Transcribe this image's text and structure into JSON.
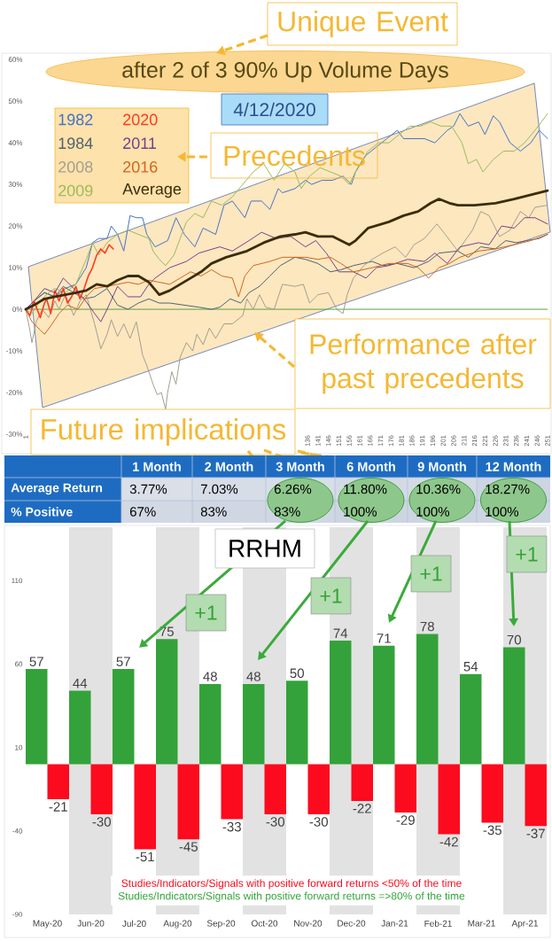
{
  "chart_data": [
    {
      "type": "line",
      "title": "after 2 of 3 90% Up Volume Days",
      "subtitle": "4/12/2020",
      "xlim": [
        1,
        251
      ],
      "ylim": [
        -30,
        60
      ],
      "xticks": [
        1,
        136,
        141,
        146,
        151,
        156,
        161,
        166,
        171,
        176,
        181,
        186,
        191,
        196,
        201,
        206,
        211,
        216,
        221,
        226,
        231,
        236,
        241,
        246,
        251
      ],
      "yticks": [
        {
          "value": -30,
          "label": "-30%"
        },
        {
          "value": -20,
          "label": "-20%"
        },
        {
          "value": -10,
          "label": "-10%"
        },
        {
          "value": 0,
          "label": "0%"
        },
        {
          "value": 10,
          "label": "10%"
        },
        {
          "value": 20,
          "label": "20%"
        },
        {
          "value": 30,
          "label": "30%"
        },
        {
          "value": 40,
          "label": "40%"
        },
        {
          "value": 50,
          "label": "50%"
        },
        {
          "value": 60,
          "label": "60%"
        }
      ],
      "legend": "top left",
      "ref_lines": [
        {
          "axis": "y",
          "value": 0,
          "color": "#5ba33b"
        }
      ],
      "annotations": [
        "Unique Event",
        "Precedents",
        "Performance after past precedents",
        "Future implications"
      ],
      "series": [
        {
          "name": "1982",
          "color": "#4472c4",
          "x": [
            1,
            5,
            10,
            15,
            20,
            25,
            30,
            33,
            36,
            40,
            42,
            45,
            48,
            51,
            54,
            57,
            59,
            63,
            69,
            73,
            77,
            82,
            86,
            92,
            96,
            100,
            106,
            109,
            114,
            118,
            122,
            124,
            130,
            135,
            138,
            143,
            148,
            153,
            157,
            159,
            164,
            169,
            174,
            179,
            182,
            187,
            192,
            197,
            203,
            206,
            209,
            213,
            218,
            221,
            225,
            228,
            233,
            238,
            243,
            247,
            251
          ],
          "values": [
            0,
            2,
            4,
            3,
            5,
            6,
            10,
            16,
            17,
            17,
            20,
            18,
            14,
            22.5,
            22,
            22,
            18,
            15,
            16.5,
            22,
            18,
            15,
            19.5,
            18,
            25,
            26,
            22,
            26,
            26,
            24,
            29,
            28,
            29,
            31,
            30,
            31,
            31,
            32,
            30,
            33,
            37,
            39,
            41,
            43,
            41,
            41,
            41,
            40,
            43,
            44,
            47,
            44,
            45,
            42,
            46.5,
            45,
            40,
            38,
            40,
            43,
            41
          ]
        },
        {
          "name": "1984",
          "color": "#52606e",
          "x": [
            1,
            5,
            10,
            15,
            19,
            24,
            29,
            34,
            40,
            45,
            50,
            55,
            60,
            65,
            70,
            77,
            84,
            90,
            94,
            99,
            104,
            108,
            113,
            118,
            123,
            130,
            135,
            141,
            147,
            152,
            158,
            167,
            172,
            179,
            187,
            194,
            199,
            208,
            213,
            219,
            226,
            231,
            236,
            241,
            247,
            251
          ],
          "values": [
            0,
            2,
            4,
            3,
            5.5,
            4,
            2.5,
            3,
            5,
            1,
            0,
            1.5,
            2.5,
            1.5,
            1.5,
            1,
            0.5,
            0,
            0.5,
            2.5,
            1.5,
            4,
            5.5,
            8,
            10.5,
            12.5,
            12,
            11,
            9,
            9.5,
            10.5,
            11.5,
            10.5,
            11,
            10,
            11.5,
            13.5,
            14,
            12.5,
            15,
            14.5,
            16.5,
            16,
            16.5,
            17,
            18
          ]
        },
        {
          "name": "2008",
          "color": "#a39e8f",
          "x": [
            1,
            3,
            4,
            6,
            9,
            12,
            15,
            17,
            20,
            24,
            27,
            30,
            34,
            37,
            40,
            42,
            45,
            48,
            51,
            54,
            57,
            59,
            62,
            64,
            66,
            68,
            69,
            71,
            73,
            75,
            78,
            81,
            83,
            86,
            89,
            92,
            96,
            100,
            105,
            107,
            110,
            113,
            116,
            120,
            124,
            130,
            134,
            137,
            141,
            146,
            150,
            153,
            155,
            158,
            163,
            167,
            172,
            178,
            183,
            187,
            192,
            198,
            202,
            208,
            215,
            219,
            223,
            228,
            233,
            238,
            242,
            245,
            251
          ],
          "values": [
            0,
            -5,
            -8,
            -3,
            0,
            -2,
            2,
            0,
            3.5,
            -1.5,
            2,
            3.5,
            -3.5,
            -9.5,
            -6,
            -2.5,
            -6.5,
            -3.5,
            -7,
            -3,
            -11,
            -13.5,
            -18,
            -20.5,
            -20,
            -24,
            -20,
            -15,
            -18,
            -11.5,
            -8,
            -10,
            -6,
            -8.5,
            -4.5,
            -7,
            -3.5,
            -3.5,
            -1.5,
            2.5,
            0,
            3.5,
            0.5,
            0,
            6,
            5.5,
            6,
            1.5,
            3.5,
            4,
            0,
            -1,
            3.5,
            7.5,
            10.5,
            12,
            13.5,
            15,
            12.5,
            15.5,
            17,
            20.5,
            18,
            14,
            19,
            23.5,
            22.5,
            17.5,
            19,
            23.5,
            22,
            24.5,
            25
          ]
        },
        {
          "name": "2009",
          "color": "#9bbb59",
          "x": [
            1,
            4,
            8,
            12,
            15,
            20,
            25,
            30,
            33,
            36,
            40,
            45,
            50,
            55,
            60,
            62,
            65,
            68,
            72,
            75,
            78,
            82,
            86,
            90,
            95,
            100,
            105,
            110,
            115,
            120,
            125,
            130,
            133,
            137,
            142,
            147,
            152,
            156,
            160,
            165,
            170,
            175,
            180,
            185,
            190,
            195,
            200,
            205,
            210,
            213,
            217,
            220,
            225,
            230,
            235,
            240,
            245,
            248,
            251
          ],
          "values": [
            0,
            -1,
            2,
            4,
            5,
            4,
            6,
            12,
            16,
            13,
            16,
            18,
            19,
            18,
            17,
            14,
            12,
            10.5,
            13,
            17,
            21,
            23,
            22,
            26,
            25,
            27,
            30,
            33,
            35,
            31,
            35,
            33,
            29,
            32,
            34,
            33,
            32,
            30,
            34,
            38,
            40,
            40,
            42,
            44,
            44,
            45,
            44,
            44,
            40,
            35,
            36,
            33,
            36,
            38,
            38,
            40,
            43,
            45,
            47
          ]
        },
        {
          "name": "2020",
          "color": "#ff3b1f",
          "x": [
            1,
            3,
            5,
            8,
            10,
            11,
            13,
            15,
            17,
            19,
            21,
            23,
            25,
            27,
            29,
            31,
            33,
            35,
            37,
            39,
            41,
            43
          ],
          "values": [
            0,
            -1.5,
            2,
            -2,
            1.5,
            2.5,
            -1,
            4.5,
            2,
            5,
            1.5,
            3,
            5.5,
            2.5,
            5,
            8,
            10,
            13,
            14.5,
            13.5,
            15.5,
            14.5
          ]
        },
        {
          "name": "2011",
          "color": "#7a3e8c",
          "x": [
            1,
            5,
            10,
            15,
            19,
            24,
            29,
            34,
            37,
            40,
            45,
            50,
            56,
            60,
            63,
            70,
            78,
            84,
            94,
            100,
            108,
            114,
            121,
            128,
            135,
            140,
            145,
            151,
            158,
            164,
            169,
            175,
            184,
            192,
            197,
            203,
            209,
            218,
            223,
            229,
            235,
            240,
            245,
            251
          ],
          "values": [
            0,
            2,
            5,
            4,
            7.5,
            5,
            2.5,
            -1,
            -3,
            0,
            5.5,
            3,
            3,
            6,
            7.5,
            10,
            11.5,
            13.5,
            15,
            14,
            16.5,
            18.5,
            17,
            17.5,
            15,
            16.5,
            13.5,
            9,
            9,
            7.5,
            10,
            10.5,
            12,
            11.5,
            13.5,
            11,
            15,
            16,
            15.5,
            20,
            19.5,
            22,
            22,
            20.5
          ]
        },
        {
          "name": "2016",
          "color": "#d0651b",
          "x": [
            1,
            4,
            8,
            10,
            13,
            17,
            21,
            26,
            30,
            34,
            40,
            45,
            50,
            55,
            60,
            65,
            70,
            75,
            80,
            85,
            90,
            95,
            100,
            103,
            106,
            110,
            118,
            124,
            135,
            141,
            147,
            152,
            158,
            167,
            175,
            184,
            189,
            194,
            199,
            204,
            209,
            218,
            226,
            235,
            243,
            251
          ],
          "values": [
            0,
            -3,
            -5,
            -6,
            -4,
            -1,
            1,
            0,
            3,
            5,
            5.5,
            6,
            6.5,
            6,
            7,
            6.5,
            6,
            7.5,
            9,
            8,
            9.5,
            8,
            7.5,
            3,
            8,
            10.5,
            11.5,
            12.5,
            12.5,
            12,
            12.5,
            11,
            9,
            10,
            11,
            11,
            10,
            7.5,
            10,
            11,
            12.5,
            14,
            14.5,
            15.5,
            16.5,
            18
          ]
        },
        {
          "name": "Average",
          "color": "#3b2c0a",
          "x": [
            1,
            5,
            10,
            15,
            20,
            25,
            30,
            35,
            40,
            45,
            50,
            55,
            60,
            65,
            70,
            75,
            80,
            85,
            90,
            97,
            107,
            115,
            123,
            130,
            135,
            141,
            148,
            156,
            159,
            165,
            175,
            182,
            189,
            195,
            199,
            204,
            208,
            216,
            226,
            235,
            243,
            251
          ],
          "values": [
            0,
            1,
            2.5,
            3,
            3.5,
            4,
            4.5,
            6,
            5.5,
            7,
            8,
            8,
            6.5,
            3.5,
            4.5,
            6,
            7.5,
            9,
            11,
            12.5,
            14,
            16,
            17.5,
            18,
            18.5,
            17.5,
            17.5,
            15.5,
            16.5,
            19.5,
            21,
            22.5,
            23.5,
            25.5,
            26.5,
            25.5,
            25,
            25,
            25.5,
            26.5,
            27.5,
            28.5
          ]
        }
      ]
    },
    {
      "type": "heatmap",
      "categories": [
        "1 Month",
        "2 Month",
        "3 Month",
        "6 Month",
        "9 Month",
        "12 Month"
      ],
      "y_categories": [
        "Average Return",
        "% Positive"
      ],
      "cells": [
        [
          3.77,
          7.03,
          6.26,
          11.8,
          10.36,
          18.27
        ],
        [
          67,
          83,
          83,
          100,
          100,
          100
        ]
      ],
      "cell_labels": [
        [
          "3.77%",
          "7.03%",
          "6.26%",
          "11.80%",
          "10.36%",
          "18.27%"
        ],
        [
          "67%",
          "83%",
          "83%",
          "100%",
          "100%",
          "100%"
        ]
      ]
    },
    {
      "type": "bar",
      "title": "RRHM",
      "categories": [
        "May-20",
        "Jun-20",
        "Jul-20",
        "Aug-20",
        "Sep-20",
        "Oct-20",
        "Nov-20",
        "Dec-20",
        "Jan-21",
        "Feb-21",
        "Mar-21",
        "Apr-21"
      ],
      "series": [
        {
          "name": "Studies/Indicators/Signals with positive forward returns =>80% of the time",
          "color": "#34a23a",
          "values": [
            57,
            44,
            57,
            75,
            48,
            48,
            50,
            74,
            71,
            78,
            54,
            70
          ]
        },
        {
          "name": "Studies/Indicators/Signals with positive forward returns <50% of the time",
          "color": "#fc0a1e",
          "values": [
            -21,
            -30,
            -51,
            -45,
            -33,
            -30,
            -30,
            -22,
            -29,
            -42,
            -35,
            -37
          ]
        }
      ],
      "ylim": [
        -90,
        142
      ],
      "yticks": [
        -90,
        -40,
        10,
        60,
        110
      ],
      "data_labels": true,
      "legend": "bottom",
      "bands": [
        {
          "axis": "x",
          "from": "Jun-20",
          "to": "Jun-20",
          "color": "#e2e2e2"
        },
        {
          "axis": "x",
          "from": "Aug-20",
          "to": "Aug-20",
          "color": "#e2e2e2"
        },
        {
          "axis": "x",
          "from": "Oct-20",
          "to": "Oct-20",
          "color": "#e2e2e2"
        },
        {
          "axis": "x",
          "from": "Dec-20",
          "to": "Dec-20",
          "color": "#e2e2e2"
        },
        {
          "axis": "x",
          "from": "Feb-21",
          "to": "Feb-21",
          "color": "#e2e2e2"
        },
        {
          "axis": "x",
          "from": "Apr-21",
          "to": "Apr-21",
          "color": "#e2e2e2"
        }
      ],
      "annotations": [
        "+1",
        "+1",
        "+1",
        "+1"
      ]
    }
  ]
}
